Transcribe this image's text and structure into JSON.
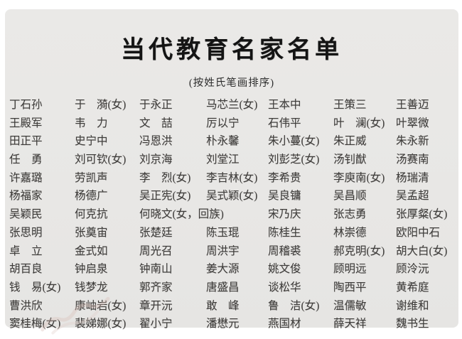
{
  "title": "当代教育名家名单",
  "subtitle": "(按姓氏笔画排序)",
  "colors": {
    "page_bg": "#ffffff",
    "panel_bg": "#e9e8e6",
    "title_text": "#141414",
    "name_text": "#3e3c3a"
  },
  "list": {
    "rows": [
      [
        "丁石孙",
        "于　漪(女)",
        "于永正",
        "马芯兰(女)",
        "王本中",
        "王策三",
        "王善迈"
      ],
      [
        "王殿军",
        "韦　力",
        "文　喆",
        "厉以宁",
        "石伟平",
        "叶　澜(女)",
        "叶翠微"
      ],
      [
        "田正平",
        "史宁中",
        "冯恩洪",
        "朴永馨",
        "朱小蔓(女)",
        "朱正威",
        "朱永新"
      ],
      [
        "任　勇",
        "刘可钦(女)",
        "刘京海",
        "刘堂江",
        "刘彭芝(女)",
        "汤钊猷",
        "汤赛南"
      ],
      [
        "许嘉璐",
        "劳凯声",
        "李　烈(女)",
        "李吉林(女)",
        "李希贵",
        "李庾南(女)",
        "杨瑞清"
      ],
      [
        "杨福家",
        "杨德广",
        "吴正宪(女)",
        "吴式颖(女)",
        "吴良镛",
        "吴昌顺",
        "吴孟超"
      ],
      [
        "吴颖民",
        "何克抗",
        {
          "text": "何晓文(女，回族)",
          "span": 2
        },
        "宋乃庆",
        "张志勇",
        "张厚粲(女)"
      ],
      [
        "张思明",
        "张奠宙",
        "张楚廷",
        "陈玉琨",
        "陈桂生",
        "林崇德",
        "欧阳中石"
      ],
      [
        "卓　立",
        "金式如",
        "周光召",
        "周洪宇",
        "周稽裘",
        "郝克明(女)",
        "胡大白(女)"
      ],
      [
        "胡百良",
        "钟启泉",
        "钟南山",
        "姜大源",
        "姚文俊",
        "顾明远",
        "顾泠沅"
      ],
      [
        "钱　易(女)",
        "钱梦龙",
        "郭齐家",
        "唐盛昌",
        "谈松华",
        "陶西平",
        "黄希庭"
      ],
      [
        "曹洪欣",
        "康岫岩(女)",
        "章开沅",
        "敢　峰",
        "鲁　洁(女)",
        "温儒敏",
        "谢维和"
      ],
      [
        "窦桂梅(女)",
        "裴娣娜(女)",
        "翟小宁",
        "潘懋元",
        "燕国材",
        "薛天祥",
        "魏书生"
      ]
    ]
  }
}
